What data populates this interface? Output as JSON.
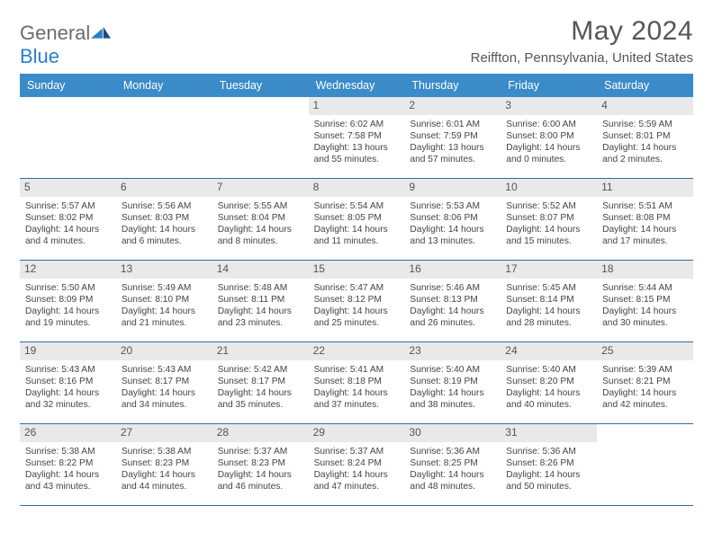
{
  "logo": {
    "word1": "General",
    "word2": "Blue"
  },
  "title": "May 2024",
  "location": "Reiffton, Pennsylvania, United States",
  "colors": {
    "header_bg": "#3b8bc9",
    "row_divider": "#2a6da8",
    "daynum_bg": "#e9e9e9",
    "logo_gray": "#6b6b6b",
    "logo_blue": "#2a7fc9"
  },
  "day_names": [
    "Sunday",
    "Monday",
    "Tuesday",
    "Wednesday",
    "Thursday",
    "Friday",
    "Saturday"
  ],
  "weeks": [
    [
      null,
      null,
      null,
      {
        "n": "1",
        "sr": "6:02 AM",
        "ss": "7:58 PM",
        "dl": "13 hours and 55 minutes."
      },
      {
        "n": "2",
        "sr": "6:01 AM",
        "ss": "7:59 PM",
        "dl": "13 hours and 57 minutes."
      },
      {
        "n": "3",
        "sr": "6:00 AM",
        "ss": "8:00 PM",
        "dl": "14 hours and 0 minutes."
      },
      {
        "n": "4",
        "sr": "5:59 AM",
        "ss": "8:01 PM",
        "dl": "14 hours and 2 minutes."
      }
    ],
    [
      {
        "n": "5",
        "sr": "5:57 AM",
        "ss": "8:02 PM",
        "dl": "14 hours and 4 minutes."
      },
      {
        "n": "6",
        "sr": "5:56 AM",
        "ss": "8:03 PM",
        "dl": "14 hours and 6 minutes."
      },
      {
        "n": "7",
        "sr": "5:55 AM",
        "ss": "8:04 PM",
        "dl": "14 hours and 8 minutes."
      },
      {
        "n": "8",
        "sr": "5:54 AM",
        "ss": "8:05 PM",
        "dl": "14 hours and 11 minutes."
      },
      {
        "n": "9",
        "sr": "5:53 AM",
        "ss": "8:06 PM",
        "dl": "14 hours and 13 minutes."
      },
      {
        "n": "10",
        "sr": "5:52 AM",
        "ss": "8:07 PM",
        "dl": "14 hours and 15 minutes."
      },
      {
        "n": "11",
        "sr": "5:51 AM",
        "ss": "8:08 PM",
        "dl": "14 hours and 17 minutes."
      }
    ],
    [
      {
        "n": "12",
        "sr": "5:50 AM",
        "ss": "8:09 PM",
        "dl": "14 hours and 19 minutes."
      },
      {
        "n": "13",
        "sr": "5:49 AM",
        "ss": "8:10 PM",
        "dl": "14 hours and 21 minutes."
      },
      {
        "n": "14",
        "sr": "5:48 AM",
        "ss": "8:11 PM",
        "dl": "14 hours and 23 minutes."
      },
      {
        "n": "15",
        "sr": "5:47 AM",
        "ss": "8:12 PM",
        "dl": "14 hours and 25 minutes."
      },
      {
        "n": "16",
        "sr": "5:46 AM",
        "ss": "8:13 PM",
        "dl": "14 hours and 26 minutes."
      },
      {
        "n": "17",
        "sr": "5:45 AM",
        "ss": "8:14 PM",
        "dl": "14 hours and 28 minutes."
      },
      {
        "n": "18",
        "sr": "5:44 AM",
        "ss": "8:15 PM",
        "dl": "14 hours and 30 minutes."
      }
    ],
    [
      {
        "n": "19",
        "sr": "5:43 AM",
        "ss": "8:16 PM",
        "dl": "14 hours and 32 minutes."
      },
      {
        "n": "20",
        "sr": "5:43 AM",
        "ss": "8:17 PM",
        "dl": "14 hours and 34 minutes."
      },
      {
        "n": "21",
        "sr": "5:42 AM",
        "ss": "8:17 PM",
        "dl": "14 hours and 35 minutes."
      },
      {
        "n": "22",
        "sr": "5:41 AM",
        "ss": "8:18 PM",
        "dl": "14 hours and 37 minutes."
      },
      {
        "n": "23",
        "sr": "5:40 AM",
        "ss": "8:19 PM",
        "dl": "14 hours and 38 minutes."
      },
      {
        "n": "24",
        "sr": "5:40 AM",
        "ss": "8:20 PM",
        "dl": "14 hours and 40 minutes."
      },
      {
        "n": "25",
        "sr": "5:39 AM",
        "ss": "8:21 PM",
        "dl": "14 hours and 42 minutes."
      }
    ],
    [
      {
        "n": "26",
        "sr": "5:38 AM",
        "ss": "8:22 PM",
        "dl": "14 hours and 43 minutes."
      },
      {
        "n": "27",
        "sr": "5:38 AM",
        "ss": "8:23 PM",
        "dl": "14 hours and 44 minutes."
      },
      {
        "n": "28",
        "sr": "5:37 AM",
        "ss": "8:23 PM",
        "dl": "14 hours and 46 minutes."
      },
      {
        "n": "29",
        "sr": "5:37 AM",
        "ss": "8:24 PM",
        "dl": "14 hours and 47 minutes."
      },
      {
        "n": "30",
        "sr": "5:36 AM",
        "ss": "8:25 PM",
        "dl": "14 hours and 48 minutes."
      },
      {
        "n": "31",
        "sr": "5:36 AM",
        "ss": "8:26 PM",
        "dl": "14 hours and 50 minutes."
      },
      null
    ]
  ],
  "labels": {
    "sunrise_prefix": "Sunrise: ",
    "sunset_prefix": "Sunset: ",
    "daylight_prefix": "Daylight: "
  }
}
